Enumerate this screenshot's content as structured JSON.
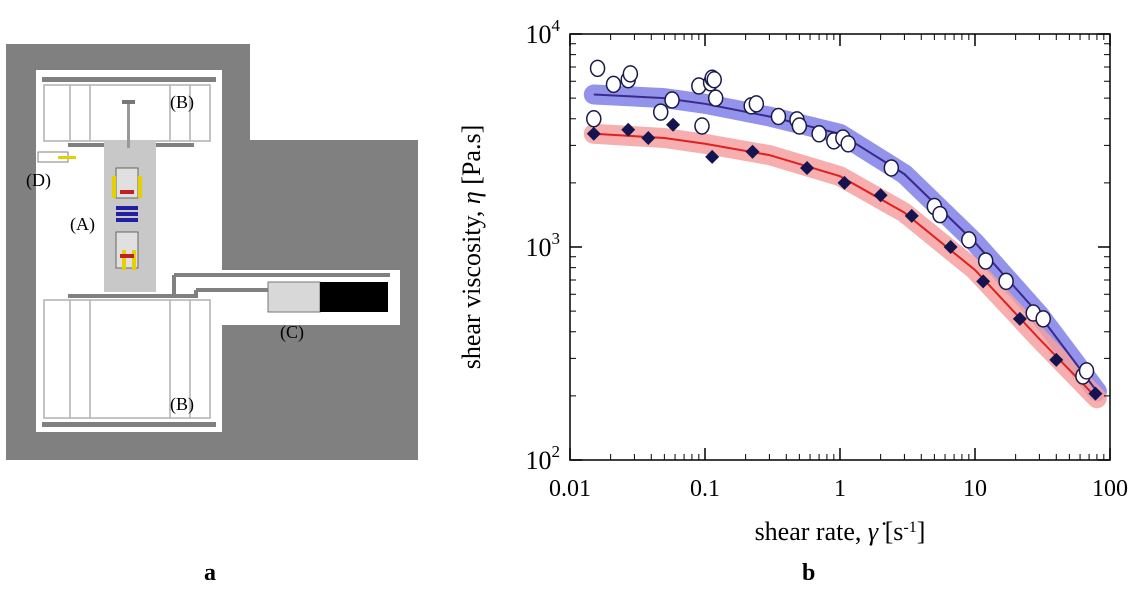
{
  "figure": {
    "panel_a_label": "a",
    "panel_b_label": "b"
  },
  "schematic": {
    "labels": {
      "A": "(A)",
      "B_top": "(B)",
      "B_bottom": "(B)",
      "C": "(C)",
      "D": "(D)"
    },
    "colors": {
      "housing": "#808080",
      "cavity": "#ffffff",
      "inner": "#c8c8c8",
      "motor": "#000000"
    }
  },
  "chart_data": {
    "type": "scatter",
    "xscale": "log",
    "yscale": "log",
    "xlim": [
      0.01,
      100
    ],
    "ylim": [
      100,
      10000
    ],
    "xlabel": "shear rate, γ̇ [s-1]",
    "ylabel": "shear viscosity, η [Pa.s]",
    "x_ticks": [
      {
        "value": 0.01,
        "label": "0.01"
      },
      {
        "value": 0.1,
        "label": "0.1"
      },
      {
        "value": 1,
        "label": "1"
      },
      {
        "value": 10,
        "label": "10"
      },
      {
        "value": 100,
        "label": "100"
      }
    ],
    "y_ticks": [
      {
        "value": 100,
        "base": "10",
        "exp": "2"
      },
      {
        "value": 1000,
        "base": "10",
        "exp": "3"
      },
      {
        "value": 10000,
        "base": "10",
        "exp": "4"
      }
    ],
    "series": [
      {
        "marker": "open-circle",
        "fit_color": "#3a2a8c",
        "band_color": "#8080e8",
        "points": [
          [
            0.015,
            4000
          ],
          [
            0.016,
            6900
          ],
          [
            0.021,
            5800
          ],
          [
            0.027,
            6100
          ],
          [
            0.028,
            6500
          ],
          [
            0.047,
            4300
          ],
          [
            0.057,
            4900
          ],
          [
            0.09,
            5700
          ],
          [
            0.095,
            3700
          ],
          [
            0.11,
            5900
          ],
          [
            0.113,
            6200
          ],
          [
            0.117,
            6100
          ],
          [
            0.12,
            5000
          ],
          [
            0.22,
            4600
          ],
          [
            0.24,
            4700
          ],
          [
            0.35,
            4100
          ],
          [
            0.48,
            3950
          ],
          [
            0.5,
            3700
          ],
          [
            0.7,
            3400
          ],
          [
            0.9,
            3150
          ],
          [
            1.05,
            3250
          ],
          [
            1.15,
            3050
          ],
          [
            2.4,
            2350
          ],
          [
            5.0,
            1550
          ],
          [
            5.5,
            1420
          ],
          [
            9.0,
            1080
          ],
          [
            12.0,
            860
          ],
          [
            17.0,
            690
          ],
          [
            27.0,
            490
          ],
          [
            32.0,
            460
          ],
          [
            63.0,
            248
          ],
          [
            67.0,
            262
          ]
        ],
        "fit": [
          [
            0.015,
            5200
          ],
          [
            0.05,
            5000
          ],
          [
            0.1,
            4700
          ],
          [
            0.3,
            4100
          ],
          [
            1,
            3400
          ],
          [
            3,
            2200
          ],
          [
            10,
            1050
          ],
          [
            30,
            480
          ],
          [
            80,
            210
          ]
        ]
      },
      {
        "marker": "filled-diamond",
        "fit_color": "#e02020",
        "band_color": "#f4a0a0",
        "points": [
          [
            0.015,
            3400
          ],
          [
            0.027,
            3550
          ],
          [
            0.038,
            3250
          ],
          [
            0.058,
            3750
          ],
          [
            0.113,
            2650
          ],
          [
            0.225,
            2800
          ],
          [
            0.57,
            2350
          ],
          [
            1.08,
            2000
          ],
          [
            2.0,
            1750
          ],
          [
            3.4,
            1400
          ],
          [
            6.6,
            1000
          ],
          [
            11.5,
            690
          ],
          [
            21.5,
            460
          ],
          [
            40.0,
            295
          ],
          [
            78.0,
            205
          ]
        ],
        "fit": [
          [
            0.015,
            3400
          ],
          [
            0.05,
            3250
          ],
          [
            0.1,
            3050
          ],
          [
            0.3,
            2700
          ],
          [
            1,
            2150
          ],
          [
            3,
            1450
          ],
          [
            10,
            780
          ],
          [
            30,
            370
          ],
          [
            80,
            195
          ]
        ]
      }
    ]
  }
}
